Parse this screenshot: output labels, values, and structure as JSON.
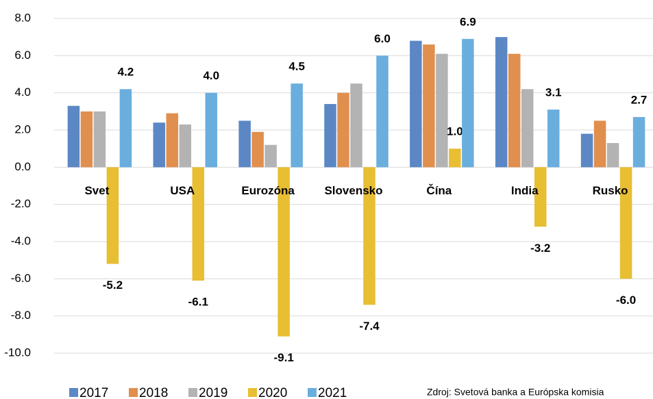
{
  "chart_data": {
    "type": "bar",
    "categories": [
      "Svet",
      "USA",
      "Eurozóna",
      "Slovensko",
      "Čína",
      "India",
      "Rusko"
    ],
    "series": [
      {
        "name": "2017",
        "color": "#5b87c5",
        "values": [
          3.3,
          2.4,
          2.5,
          3.4,
          6.8,
          7.0,
          1.8
        ]
      },
      {
        "name": "2018",
        "color": "#e08f4e",
        "values": [
          3.0,
          2.9,
          1.9,
          4.0,
          6.6,
          6.1,
          2.5
        ]
      },
      {
        "name": "2019",
        "color": "#b3b3b3",
        "values": [
          3.0,
          2.3,
          1.2,
          4.5,
          6.1,
          4.2,
          1.3
        ]
      },
      {
        "name": "2020",
        "color": "#e8be33",
        "values": [
          -5.2,
          -6.1,
          -9.1,
          -7.4,
          1.0,
          -3.2,
          -6.0
        ],
        "value_labels": [
          "-5.2",
          "-6.1",
          "-9.1",
          "-7.4",
          "1.0",
          "-3.2",
          "-6.0"
        ]
      },
      {
        "name": "2021",
        "color": "#6aaede",
        "values": [
          4.2,
          4.0,
          4.5,
          6.0,
          6.9,
          3.1,
          2.7
        ],
        "value_labels": [
          "4.2",
          "4.0",
          "4.5",
          "6.0",
          "6.9",
          "3.1",
          "2.7"
        ]
      }
    ],
    "ylim": [
      -10,
      8
    ],
    "yticks": [
      {
        "value": -10,
        "label": "-10.0"
      },
      {
        "value": -8,
        "label": "-8.0"
      },
      {
        "value": -6,
        "label": "-6.0"
      },
      {
        "value": -4,
        "label": "-4.0"
      },
      {
        "value": -2,
        "label": "-2.0"
      },
      {
        "value": 0,
        "label": "0.0"
      },
      {
        "value": 2,
        "label": "2.0"
      },
      {
        "value": 4,
        "label": "4.0"
      },
      {
        "value": 6,
        "label": "6.0"
      },
      {
        "value": 8,
        "label": "8.0"
      }
    ],
    "grid": true,
    "legend": "bottom",
    "annotation": "Zdroj: Svetová banka a Európska komisia"
  }
}
